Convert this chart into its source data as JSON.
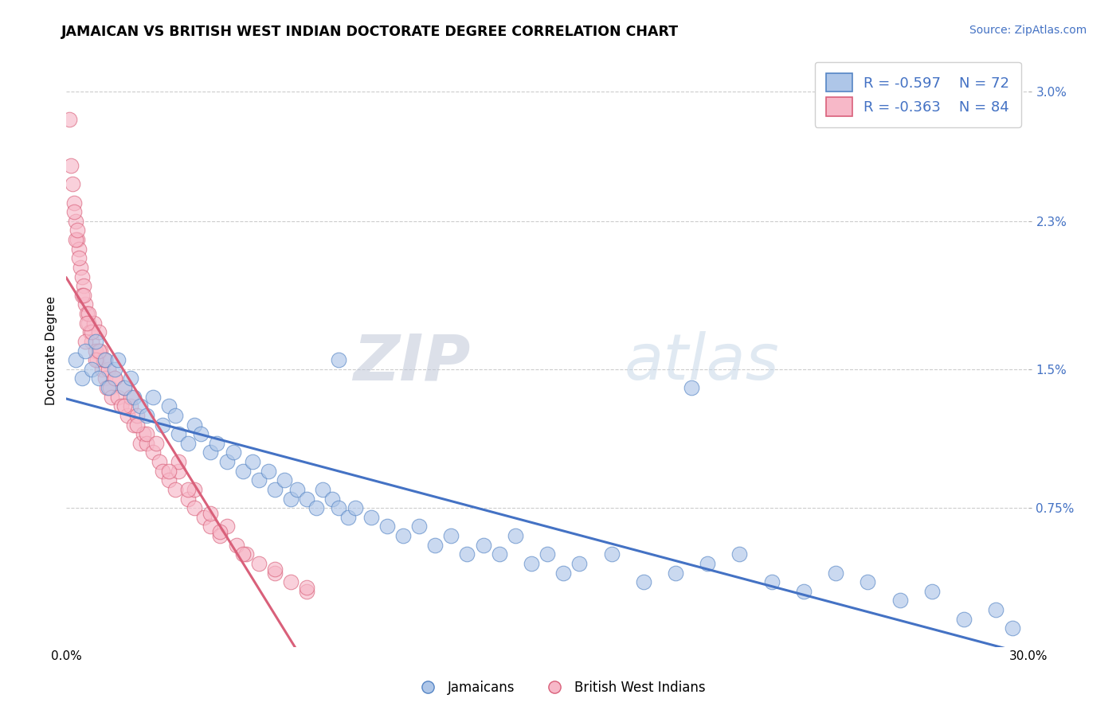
{
  "title": "JAMAICAN VS BRITISH WEST INDIAN DOCTORATE DEGREE CORRELATION CHART",
  "source": "Source: ZipAtlas.com",
  "ylabel": "Doctorate Degree",
  "xlim": [
    0.0,
    30.0
  ],
  "ylim": [
    0.0,
    3.2
  ],
  "ytick_positions": [
    0.75,
    1.5,
    2.3,
    3.0
  ],
  "ytick_labels": [
    "0.75%",
    "1.5%",
    "2.3%",
    "3.0%"
  ],
  "xtick_positions": [
    0.0,
    30.0
  ],
  "xtick_labels": [
    "0.0%",
    "30.0%"
  ],
  "legend_line1": "R = -0.597    N = 72",
  "legend_line2": "R = -0.363    N = 84",
  "legend_label_blue": "Jamaicans",
  "legend_label_pink": "British West Indians",
  "color_blue_fill": "#aec6e8",
  "color_blue_edge": "#5585c5",
  "color_blue_line": "#4472c4",
  "color_pink_fill": "#f7b8c8",
  "color_pink_edge": "#d9607a",
  "color_pink_line": "#d9607a",
  "watermark_zip": "ZIP",
  "watermark_atlas": "atlas",
  "background_color": "#ffffff",
  "grid_color": "#cccccc",
  "title_fontsize": 12.5,
  "jamaicans_x": [
    0.3,
    0.5,
    0.6,
    0.8,
    0.9,
    1.0,
    1.2,
    1.3,
    1.5,
    1.6,
    1.8,
    2.0,
    2.1,
    2.3,
    2.5,
    2.7,
    3.0,
    3.2,
    3.4,
    3.5,
    3.8,
    4.0,
    4.2,
    4.5,
    4.7,
    5.0,
    5.2,
    5.5,
    5.8,
    6.0,
    6.3,
    6.5,
    6.8,
    7.0,
    7.2,
    7.5,
    7.8,
    8.0,
    8.3,
    8.5,
    8.8,
    9.0,
    9.5,
    10.0,
    10.5,
    11.0,
    11.5,
    12.0,
    12.5,
    13.0,
    13.5,
    14.0,
    14.5,
    15.0,
    15.5,
    16.0,
    17.0,
    18.0,
    19.0,
    20.0,
    21.0,
    22.0,
    23.0,
    24.0,
    25.0,
    26.0,
    27.0,
    28.0,
    29.0,
    29.5,
    8.5,
    19.5
  ],
  "jamaicans_y": [
    1.55,
    1.45,
    1.6,
    1.5,
    1.65,
    1.45,
    1.55,
    1.4,
    1.5,
    1.55,
    1.4,
    1.45,
    1.35,
    1.3,
    1.25,
    1.35,
    1.2,
    1.3,
    1.25,
    1.15,
    1.1,
    1.2,
    1.15,
    1.05,
    1.1,
    1.0,
    1.05,
    0.95,
    1.0,
    0.9,
    0.95,
    0.85,
    0.9,
    0.8,
    0.85,
    0.8,
    0.75,
    0.85,
    0.8,
    0.75,
    0.7,
    0.75,
    0.7,
    0.65,
    0.6,
    0.65,
    0.55,
    0.6,
    0.5,
    0.55,
    0.5,
    0.6,
    0.45,
    0.5,
    0.4,
    0.45,
    0.5,
    0.35,
    0.4,
    0.45,
    0.5,
    0.35,
    0.3,
    0.4,
    0.35,
    0.25,
    0.3,
    0.15,
    0.2,
    0.1,
    1.55,
    1.4
  ],
  "bwi_x": [
    0.1,
    0.15,
    0.2,
    0.25,
    0.3,
    0.35,
    0.4,
    0.45,
    0.5,
    0.55,
    0.6,
    0.65,
    0.7,
    0.75,
    0.8,
    0.85,
    0.9,
    0.95,
    1.0,
    1.05,
    1.1,
    1.15,
    1.2,
    1.25,
    1.3,
    1.35,
    1.4,
    1.5,
    1.6,
    1.7,
    1.8,
    1.9,
    2.0,
    2.1,
    2.2,
    2.3,
    2.4,
    2.5,
    2.7,
    2.9,
    3.0,
    3.2,
    3.4,
    3.5,
    3.8,
    4.0,
    4.3,
    4.5,
    4.8,
    5.0,
    5.3,
    5.6,
    6.0,
    6.5,
    7.0,
    7.5,
    1.2,
    2.0,
    3.5,
    4.0,
    0.5,
    0.7,
    0.3,
    0.6,
    0.8,
    0.9,
    0.4,
    1.5,
    2.5,
    3.2,
    2.8,
    1.0,
    1.8,
    2.2,
    0.25,
    0.55,
    3.8,
    4.8,
    0.35,
    0.65,
    4.5,
    5.5,
    6.5,
    7.5
  ],
  "bwi_y": [
    2.85,
    2.6,
    2.5,
    2.4,
    2.3,
    2.2,
    2.15,
    2.05,
    2.0,
    1.95,
    1.85,
    1.8,
    1.75,
    1.7,
    1.65,
    1.75,
    1.6,
    1.55,
    1.7,
    1.6,
    1.5,
    1.55,
    1.45,
    1.4,
    1.5,
    1.4,
    1.35,
    1.45,
    1.35,
    1.3,
    1.4,
    1.25,
    1.3,
    1.2,
    1.25,
    1.1,
    1.15,
    1.1,
    1.05,
    1.0,
    0.95,
    0.9,
    0.85,
    0.95,
    0.8,
    0.75,
    0.7,
    0.65,
    0.6,
    0.65,
    0.55,
    0.5,
    0.45,
    0.4,
    0.35,
    0.3,
    1.55,
    1.35,
    1.0,
    0.85,
    1.9,
    1.8,
    2.2,
    1.65,
    1.7,
    1.55,
    2.1,
    1.45,
    1.15,
    0.95,
    1.1,
    1.6,
    1.3,
    1.2,
    2.35,
    1.9,
    0.85,
    0.62,
    2.25,
    1.75,
    0.72,
    0.5,
    0.42,
    0.32
  ]
}
